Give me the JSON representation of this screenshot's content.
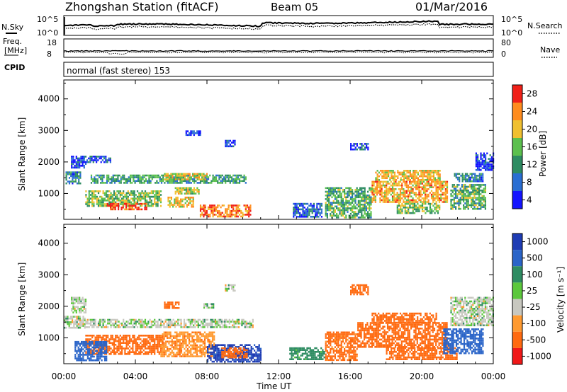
{
  "header": {
    "title": "Zhongshan Station (fitACF)",
    "beam": "Beam 05",
    "date": "01/Mar/2016"
  },
  "params": {
    "nsky_label": "N.Sky",
    "nsearch_label": "N.Search",
    "freq_label_1": "Freq.",
    "freq_label_2": "[MHz]",
    "cpid_label": "CPID",
    "nave_label": "Nave",
    "ticks_left_top": [
      "10^5",
      "10^0"
    ],
    "ticks_right_top": [
      "10^5",
      "10^0"
    ],
    "ticks_left_freq": [
      "18",
      "8"
    ],
    "ticks_right_nave": [
      "80",
      "0"
    ],
    "cpid_text": "normal (fast stereo) 153"
  },
  "chart_data": [
    {
      "type": "heatmap",
      "panel": "power",
      "ylabel": "Slant Range [km]",
      "ylim": [
        180,
        4600
      ],
      "yticks": [
        "1000",
        "2000",
        "3000",
        "4000"
      ],
      "xlim": [
        0,
        24
      ],
      "colorbar": {
        "label": "Power [dB]",
        "ticks": [
          "4",
          "8",
          "12",
          "16",
          "20",
          "24",
          "28"
        ],
        "colors": [
          "#1414ff",
          "#2a6ed2",
          "#2e8c62",
          "#5cc04e",
          "#f0c030",
          "#ff8c1e",
          "#f02018"
        ]
      },
      "regions": [
        {
          "t0": 0.1,
          "t1": 0.9,
          "r0": 1300,
          "r1": 1700,
          "value": 10
        },
        {
          "t0": 0.4,
          "t1": 1.2,
          "r0": 1800,
          "r1": 2200,
          "value": 6
        },
        {
          "t0": 1.5,
          "t1": 10.2,
          "r0": 1350,
          "r1": 1600,
          "value": 13
        },
        {
          "t0": 5.6,
          "t1": 8.0,
          "r0": 1450,
          "r1": 1650,
          "value": 20
        },
        {
          "t0": 1.2,
          "t1": 5.4,
          "r0": 600,
          "r1": 1100,
          "value": 16
        },
        {
          "t0": 2.4,
          "t1": 4.6,
          "r0": 500,
          "r1": 700,
          "value": 26
        },
        {
          "t0": 5.8,
          "t1": 7.2,
          "r0": 600,
          "r1": 900,
          "value": 20
        },
        {
          "t0": 7.6,
          "t1": 10.4,
          "r0": 250,
          "r1": 650,
          "value": 24
        },
        {
          "t0": 6.2,
          "t1": 7.6,
          "r0": 1000,
          "r1": 1200,
          "value": 18
        },
        {
          "t0": 9.0,
          "t1": 9.6,
          "r0": 2500,
          "r1": 2700,
          "value": 6
        },
        {
          "t0": 6.8,
          "t1": 7.6,
          "r0": 2850,
          "r1": 3000,
          "value": 5
        },
        {
          "t0": 1.0,
          "t1": 2.6,
          "r0": 2000,
          "r1": 2200,
          "value": 7
        },
        {
          "t0": 14.6,
          "t1": 17.2,
          "r0": 250,
          "r1": 1200,
          "value": 14
        },
        {
          "t0": 16.0,
          "t1": 17.0,
          "r0": 2400,
          "r1": 2600,
          "value": 8
        },
        {
          "t0": 17.2,
          "t1": 21.4,
          "r0": 700,
          "r1": 1400,
          "value": 22
        },
        {
          "t0": 17.4,
          "t1": 21.0,
          "r0": 1400,
          "r1": 1750,
          "value": 21
        },
        {
          "t0": 18.6,
          "t1": 21.0,
          "r0": 400,
          "r1": 700,
          "value": 16
        },
        {
          "t0": 21.6,
          "t1": 23.6,
          "r0": 500,
          "r1": 1300,
          "value": 14
        },
        {
          "t0": 21.8,
          "t1": 23.4,
          "r0": 1400,
          "r1": 1650,
          "value": 10
        },
        {
          "t0": 23.0,
          "t1": 24.0,
          "r0": 1750,
          "r1": 2300,
          "value": 6
        },
        {
          "t0": 12.8,
          "t1": 14.4,
          "r0": 250,
          "r1": 700,
          "value": 8
        }
      ]
    },
    {
      "type": "heatmap",
      "panel": "velocity",
      "ylabel": "Slant Range [km]",
      "ylim": [
        180,
        4600
      ],
      "yticks": [
        "1000",
        "2000",
        "3000",
        "4000"
      ],
      "xlim": [
        0,
        24
      ],
      "xticks": [
        "00:00",
        "04:00",
        "08:00",
        "12:00",
        "16:00",
        "20:00",
        "00:00"
      ],
      "xlabel": "Time UT",
      "colorbar": {
        "label": "Velocity [m s⁻¹]",
        "ticks": [
          "1000",
          "500",
          "100",
          "25",
          "-25",
          "-100",
          "-500",
          "-1000"
        ],
        "colors": [
          "#1e3cb4",
          "#2a64c8",
          "#2e8c62",
          "#5cc83c",
          "#c8c8c0",
          "#ff9a30",
          "#ff6a10",
          "#f01818"
        ]
      },
      "regions": [
        {
          "t0": 0.0,
          "t1": 1.2,
          "r0": 1300,
          "r1": 1700,
          "value": 0
        },
        {
          "t0": 0.4,
          "t1": 1.2,
          "r0": 1800,
          "r1": 2300,
          "value": 0
        },
        {
          "t0": 1.2,
          "t1": 10.6,
          "r0": 1350,
          "r1": 1600,
          "value": 0
        },
        {
          "t0": 1.2,
          "t1": 5.6,
          "r0": 500,
          "r1": 1100,
          "value": -300
        },
        {
          "t0": 0.6,
          "t1": 2.4,
          "r0": 300,
          "r1": 900,
          "value": 200
        },
        {
          "t0": 5.4,
          "t1": 8.4,
          "r0": 400,
          "r1": 1200,
          "value": -80
        },
        {
          "t0": 8.0,
          "t1": 11.0,
          "r0": 250,
          "r1": 800,
          "value": 700
        },
        {
          "t0": 8.8,
          "t1": 10.2,
          "r0": 400,
          "r1": 700,
          "value": -300
        },
        {
          "t0": 9.0,
          "t1": 9.6,
          "r0": 2500,
          "r1": 2700,
          "value": 0
        },
        {
          "t0": 5.6,
          "t1": 6.4,
          "r0": 1950,
          "r1": 2150,
          "value": -200
        },
        {
          "t0": 7.8,
          "t1": 8.4,
          "r0": 1950,
          "r1": 2100,
          "value": 10
        },
        {
          "t0": 14.6,
          "t1": 16.4,
          "r0": 300,
          "r1": 1200,
          "value": -150
        },
        {
          "t0": 16.0,
          "t1": 17.0,
          "r0": 2400,
          "r1": 2700,
          "value": -300
        },
        {
          "t0": 16.4,
          "t1": 21.4,
          "r0": 700,
          "r1": 1500,
          "value": -300
        },
        {
          "t0": 17.2,
          "t1": 20.8,
          "r0": 1500,
          "r1": 1800,
          "value": -250
        },
        {
          "t0": 18.0,
          "t1": 22.0,
          "r0": 300,
          "r1": 700,
          "value": -200
        },
        {
          "t0": 21.2,
          "t1": 23.4,
          "r0": 500,
          "r1": 1300,
          "value": 200
        },
        {
          "t0": 21.6,
          "t1": 24.0,
          "r0": 1400,
          "r1": 2300,
          "value": 0
        },
        {
          "t0": 12.6,
          "t1": 14.6,
          "r0": 300,
          "r1": 700,
          "value": 50
        }
      ]
    }
  ]
}
